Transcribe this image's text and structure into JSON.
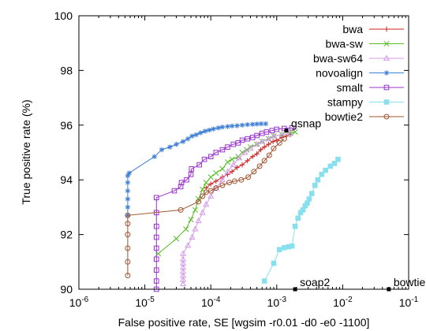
{
  "chart_data": {
    "type": "line",
    "title": "",
    "xlabel": "False positive rate, SE [wgsim -r0.01 -d0 -e0 -1100]",
    "ylabel": "True positive rate (%)",
    "x_scale": "log",
    "xlim": [
      1e-06,
      0.1
    ],
    "ylim": [
      90,
      100
    ],
    "x_ticks": [
      1e-06,
      1e-05,
      0.0001,
      0.001,
      0.01,
      0.1
    ],
    "x_tick_labels": [
      {
        "base": "10",
        "exp": "-6"
      },
      {
        "base": "10",
        "exp": "-5"
      },
      {
        "base": "10",
        "exp": "-4"
      },
      {
        "base": "10",
        "exp": "-3"
      },
      {
        "base": "10",
        "exp": "-2"
      },
      {
        "base": "10",
        "exp": "-1"
      }
    ],
    "y_ticks": [
      90,
      92,
      94,
      96,
      98,
      100
    ],
    "y_tick_labels": [
      "90",
      "92",
      "94",
      "96",
      "98",
      "100"
    ],
    "grid": false,
    "legend_position": "top-right",
    "series": [
      {
        "name": "bwa",
        "color": "#cc2222",
        "marker": "plus",
        "points": [
          [
            8.5e-05,
            93.7
          ],
          [
            0.0001,
            93.85
          ],
          [
            0.00012,
            93.95
          ],
          [
            0.00015,
            94.1
          ],
          [
            0.00018,
            94.2
          ],
          [
            0.00021,
            94.3
          ],
          [
            0.00025,
            94.45
          ],
          [
            0.0003,
            94.55
          ],
          [
            0.00036,
            94.7
          ],
          [
            0.00043,
            94.85
          ],
          [
            0.0005,
            94.95
          ],
          [
            0.00057,
            95.1
          ],
          [
            0.00065,
            95.2
          ],
          [
            0.00075,
            95.3
          ],
          [
            0.00088,
            95.4
          ],
          [
            0.001,
            95.45
          ],
          [
            0.0012,
            95.55
          ],
          [
            0.0014,
            95.6
          ],
          [
            0.0016,
            95.65
          ]
        ]
      },
      {
        "name": "bwa-sw",
        "color": "#55bb22",
        "marker": "x",
        "points": [
          [
            1.6e-05,
            91.3
          ],
          [
            3e-05,
            91.85
          ],
          [
            4.2e-05,
            92.2
          ],
          [
            5e-05,
            92.55
          ],
          [
            5.8e-05,
            92.9
          ],
          [
            6.5e-05,
            93.3
          ],
          [
            7.5e-05,
            93.65
          ],
          [
            8.5e-05,
            93.9
          ],
          [
            0.0001,
            94.1
          ],
          [
            0.00012,
            94.25
          ],
          [
            0.00015,
            94.4
          ],
          [
            0.00018,
            94.65
          ],
          [
            0.00021,
            94.75
          ],
          [
            0.00026,
            94.85
          ],
          [
            0.0003,
            95.0
          ],
          [
            0.00035,
            95.1
          ],
          [
            0.0004,
            95.2
          ],
          [
            0.0005,
            95.3
          ],
          [
            0.0006,
            95.4
          ],
          [
            0.00075,
            95.5
          ],
          [
            0.0009,
            95.6
          ],
          [
            0.0012,
            95.65
          ],
          [
            0.0016,
            95.7
          ],
          [
            0.0019,
            95.75
          ]
        ]
      },
      {
        "name": "bwa-sw64",
        "color": "#d59be8",
        "marker": "triangle",
        "points": [
          [
            3.8e-05,
            90.2
          ],
          [
            3.8e-05,
            90.35
          ],
          [
            3.8e-05,
            90.5
          ],
          [
            3.8e-05,
            90.65
          ],
          [
            3.8e-05,
            90.8
          ],
          [
            3.8e-05,
            90.95
          ],
          [
            3.8e-05,
            91.1
          ],
          [
            3.8e-05,
            91.3
          ],
          [
            4.5e-05,
            91.6
          ],
          [
            5.2e-05,
            91.9
          ],
          [
            5.8e-05,
            92.2
          ],
          [
            6.5e-05,
            92.5
          ],
          [
            7.5e-05,
            92.8
          ],
          [
            8.5e-05,
            93.1
          ],
          [
            0.0001,
            93.4
          ],
          [
            0.00012,
            93.7
          ],
          [
            0.00015,
            94.0
          ],
          [
            0.00018,
            94.3
          ],
          [
            0.00022,
            94.55
          ],
          [
            0.00027,
            94.8
          ],
          [
            0.00033,
            95.0
          ],
          [
            0.0004,
            95.15
          ],
          [
            0.0005,
            95.3
          ],
          [
            0.0006,
            95.4
          ],
          [
            0.00075,
            95.5
          ],
          [
            0.0009,
            95.6
          ],
          [
            0.0012,
            95.65
          ],
          [
            0.0016,
            95.7
          ]
        ]
      },
      {
        "name": "novoalign",
        "color": "#3f7fd6",
        "marker": "star",
        "points": [
          [
            5.5e-06,
            92.7
          ],
          [
            5.5e-06,
            93.0
          ],
          [
            5.5e-06,
            93.3
          ],
          [
            5.5e-06,
            93.6
          ],
          [
            5.5e-06,
            93.9
          ],
          [
            5.5e-06,
            94.15
          ],
          [
            5.8e-06,
            94.25
          ],
          [
            1.4e-05,
            94.85
          ],
          [
            1.8e-05,
            95.1
          ],
          [
            2.4e-05,
            95.2
          ],
          [
            3e-05,
            95.3
          ],
          [
            3.8e-05,
            95.4
          ],
          [
            4.5e-05,
            95.5
          ],
          [
            5.2e-05,
            95.6
          ],
          [
            6e-05,
            95.65
          ],
          [
            7e-05,
            95.72
          ],
          [
            8.2e-05,
            95.78
          ],
          [
            9.5e-05,
            95.82
          ],
          [
            0.00011,
            95.86
          ],
          [
            0.00013,
            95.9
          ],
          [
            0.00015,
            95.93
          ],
          [
            0.00018,
            95.95
          ],
          [
            0.00021,
            95.97
          ],
          [
            0.00025,
            95.98
          ],
          [
            0.0003,
            96.0
          ],
          [
            0.00036,
            96.02
          ],
          [
            0.00043,
            96.03
          ],
          [
            0.0005,
            96.04
          ],
          [
            0.00058,
            96.05
          ],
          [
            0.00068,
            96.05
          ]
        ]
      },
      {
        "name": "smalt",
        "color": "#9933cc",
        "marker": "square",
        "points": [
          [
            1.5e-05,
            90.0
          ],
          [
            1.5e-05,
            90.3
          ],
          [
            1.5e-05,
            90.7
          ],
          [
            1.5e-05,
            91.1
          ],
          [
            1.5e-05,
            91.5
          ],
          [
            1.5e-05,
            91.9
          ],
          [
            1.5e-05,
            92.3
          ],
          [
            1.5e-05,
            92.8
          ],
          [
            1.5e-05,
            93.35
          ],
          [
            2.8e-05,
            93.6
          ],
          [
            3.5e-05,
            93.75
          ],
          [
            3.6e-05,
            93.9
          ],
          [
            4.3e-05,
            94.0
          ],
          [
            5e-05,
            94.2
          ],
          [
            5.1e-05,
            94.4
          ],
          [
            6.7e-05,
            94.55
          ],
          [
            8e-05,
            94.75
          ],
          [
            0.0001,
            94.85
          ],
          [
            0.00012,
            95.0
          ],
          [
            0.00015,
            95.1
          ],
          [
            0.00018,
            95.2
          ],
          [
            0.00022,
            95.3
          ],
          [
            0.00026,
            95.35
          ],
          [
            0.0003,
            95.45
          ],
          [
            0.00036,
            95.5
          ],
          [
            0.00043,
            95.55
          ],
          [
            0.0005,
            95.62
          ],
          [
            0.0006,
            95.7
          ],
          [
            0.0007,
            95.75
          ],
          [
            0.00085,
            95.8
          ],
          [
            0.001,
            95.85
          ],
          [
            0.0013,
            95.88
          ],
          [
            0.0017,
            95.9
          ]
        ]
      },
      {
        "name": "stampy",
        "color": "#88e0ee",
        "marker": "filled-square",
        "points": [
          [
            0.00065,
            90.3
          ],
          [
            0.0009,
            90.95
          ],
          [
            0.0011,
            91.45
          ],
          [
            0.0013,
            91.52
          ],
          [
            0.0015,
            91.55
          ],
          [
            0.0017,
            91.58
          ],
          [
            0.0019,
            92.3
          ],
          [
            0.0021,
            92.6
          ],
          [
            0.0023,
            92.8
          ],
          [
            0.0025,
            92.9
          ],
          [
            0.0027,
            93.05
          ],
          [
            0.0029,
            93.15
          ],
          [
            0.0031,
            93.3
          ],
          [
            0.0034,
            93.5
          ],
          [
            0.0038,
            93.8
          ],
          [
            0.0042,
            94.0
          ],
          [
            0.0048,
            94.2
          ],
          [
            0.0055,
            94.35
          ],
          [
            0.0065,
            94.5
          ],
          [
            0.0075,
            94.6
          ],
          [
            0.0085,
            94.75
          ]
        ]
      },
      {
        "name": "bowtie2",
        "color": "#a0522d",
        "marker": "circle",
        "points": [
          [
            5.5e-06,
            90.5
          ],
          [
            5.5e-06,
            91.0
          ],
          [
            5.5e-06,
            91.5
          ],
          [
            5.5e-06,
            92.0
          ],
          [
            5.5e-06,
            92.4
          ],
          [
            5.5e-06,
            92.7
          ],
          [
            3.5e-05,
            92.9
          ],
          [
            6.5e-05,
            93.2
          ],
          [
            7.5e-05,
            93.4
          ],
          [
            8.5e-05,
            93.55
          ],
          [
            0.0001,
            93.6
          ],
          [
            0.00012,
            93.7
          ],
          [
            0.00015,
            93.8
          ],
          [
            0.00019,
            93.9
          ],
          [
            0.00023,
            93.95
          ],
          [
            0.00029,
            94.0
          ],
          [
            0.00037,
            94.1
          ],
          [
            0.00045,
            94.3
          ],
          [
            0.00055,
            94.5
          ],
          [
            0.00065,
            94.7
          ],
          [
            0.00077,
            94.9
          ],
          [
            0.0009,
            95.15
          ],
          [
            0.0011,
            95.35
          ],
          [
            0.0013,
            95.5
          ]
        ]
      }
    ],
    "annotations": [
      {
        "label": "gsnap",
        "x": 0.0014,
        "y": 95.8
      },
      {
        "label": "soap2",
        "x": 0.0019,
        "y": 90.0
      },
      {
        "label": "bowtie",
        "x": 0.05,
        "y": 90.0
      }
    ]
  }
}
